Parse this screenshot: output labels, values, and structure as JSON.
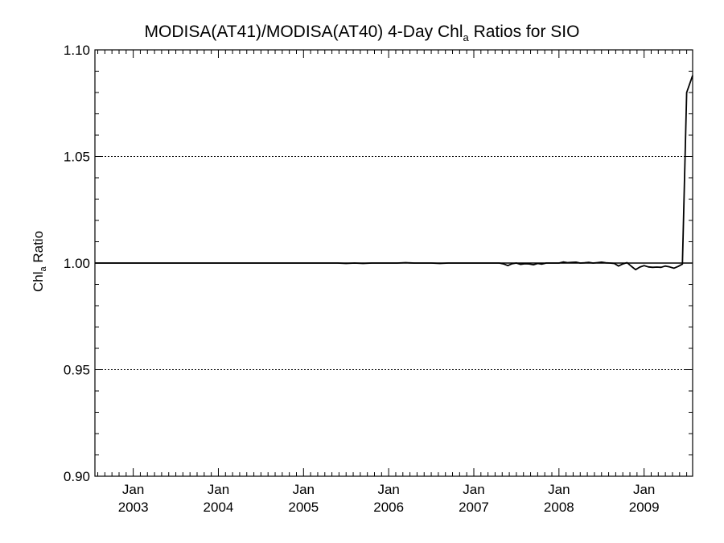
{
  "chart_data": {
    "type": "line",
    "title_pre": "MODISA(AT41)/MODISA(AT40) 4-Day Chl",
    "title_sub": "a",
    "title_post": " Ratios for SIO",
    "ylabel_pre": "Chl",
    "ylabel_sub": "a",
    "ylabel_post": " Ratio",
    "xlabel": "",
    "ylim": [
      0.9,
      1.1
    ],
    "yticks": [
      "1.10",
      "1.05",
      "1.00",
      "0.95",
      "0.90"
    ],
    "ytick_values": [
      1.1,
      1.05,
      1.0,
      0.95,
      0.9
    ],
    "xlim": [
      2002.55,
      2009.57
    ],
    "xticks": [
      {
        "month": "Jan",
        "year": "2003",
        "value": 2003.0
      },
      {
        "month": "Jan",
        "year": "2004",
        "value": 2004.0
      },
      {
        "month": "Jan",
        "year": "2005",
        "value": 2005.0
      },
      {
        "month": "Jan",
        "year": "2006",
        "value": 2006.0
      },
      {
        "month": "Jan",
        "year": "2007",
        "value": 2007.0
      },
      {
        "month": "Jan",
        "year": "2008",
        "value": 2008.0
      },
      {
        "month": "Jan",
        "year": "2009",
        "value": 2009.0
      }
    ],
    "reference_line": 1.0,
    "grid_lines": [
      1.05,
      0.95
    ],
    "series": [
      {
        "x": [
          2002.55,
          2004.0,
          2005.0,
          2005.4,
          2005.5,
          2005.6,
          2005.7,
          2005.8,
          2005.9,
          2006.0,
          2006.1,
          2006.2,
          2006.3,
          2006.4,
          2006.5,
          2006.6,
          2006.7,
          2006.8,
          2006.9,
          2007.0,
          2007.1,
          2007.2,
          2007.25,
          2007.3,
          2007.35,
          2007.4,
          2007.45,
          2007.5,
          2007.55,
          2007.6,
          2007.65,
          2007.7,
          2007.75,
          2007.8,
          2007.85,
          2007.9,
          2007.95,
          2008.0,
          2008.05,
          2008.1,
          2008.15,
          2008.2,
          2008.25,
          2008.3,
          2008.35,
          2008.4,
          2008.45,
          2008.5,
          2008.55,
          2008.6,
          2008.65,
          2008.7,
          2008.75,
          2008.8,
          2008.85,
          2008.9,
          2008.95,
          2009.0,
          2009.05,
          2009.1,
          2009.15,
          2009.2,
          2009.25,
          2009.3,
          2009.35,
          2009.4,
          2009.45,
          2009.5,
          2009.57
        ],
        "y": [
          1.0,
          1.0,
          1.0,
          1.0,
          0.9998,
          1.0,
          0.9998,
          1.0,
          1.0,
          1.0,
          1.0,
          1.0002,
          1.0,
          1.0,
          1.0,
          0.9998,
          1.0,
          1.0,
          1.0,
          1.0,
          1.0,
          1.0,
          1.0,
          1.0,
          0.9996,
          0.9988,
          0.9997,
          1.0,
          0.9994,
          0.9997,
          0.9996,
          0.9992,
          0.9998,
          0.9995,
          1.0,
          1.0,
          1.0,
          1.0,
          1.0005,
          1.0002,
          1.0003,
          1.0004,
          1.0,
          1.0001,
          1.0003,
          1.0,
          1.0002,
          1.0004,
          1.0001,
          1.0,
          0.9998,
          0.9986,
          0.9996,
          1.0002,
          0.9985,
          0.9969,
          0.9981,
          0.9988,
          0.9982,
          0.998,
          0.9981,
          0.998,
          0.9986,
          0.9982,
          0.9976,
          0.9984,
          0.9995,
          1.08,
          1.088
        ]
      }
    ],
    "colors": {
      "line": "#000000",
      "axes": "#000000",
      "background": "#ffffff"
    }
  }
}
